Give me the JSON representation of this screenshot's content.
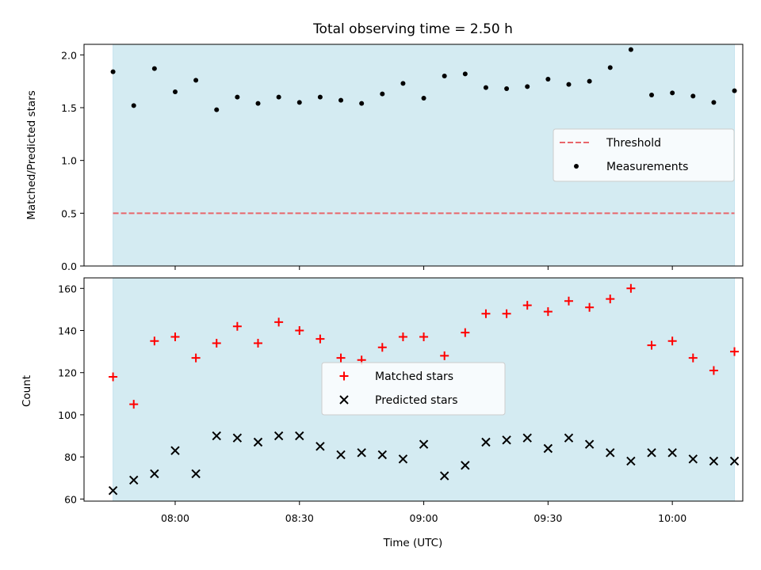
{
  "chart_data": [
    {
      "type": "scatter",
      "title": "Total observing time = 2.50 h",
      "xlabel": "",
      "ylabel": "Matched/Predicted stars",
      "xlim": [
        "07:38",
        "10:17"
      ],
      "ylim": [
        0,
        2.1
      ],
      "yticks": [
        "0.0",
        "0.5",
        "1.0",
        "1.5",
        "2.0"
      ],
      "xticks": [
        "08:00",
        "08:30",
        "09:00",
        "09:30",
        "10:00"
      ],
      "shaded_span": [
        "07:45",
        "10:15"
      ],
      "shaded_color": "#add8e6",
      "legend_position": "center-right",
      "series": [
        {
          "name": "Threshold",
          "kind": "hline",
          "y": 0.5,
          "color": "#e8666b",
          "style": "dashed"
        },
        {
          "name": "Measurements",
          "kind": "points",
          "marker": "dot",
          "color": "#000000",
          "x": [
            "07:45",
            "07:50",
            "07:55",
            "08:00",
            "08:05",
            "08:10",
            "08:15",
            "08:20",
            "08:25",
            "08:30",
            "08:35",
            "08:40",
            "08:45",
            "08:50",
            "08:55",
            "09:00",
            "09:05",
            "09:10",
            "09:15",
            "09:20",
            "09:25",
            "09:30",
            "09:35",
            "09:40",
            "09:45",
            "09:50",
            "09:55",
            "10:00",
            "10:05",
            "10:10",
            "10:15"
          ],
          "y": [
            1.84,
            1.52,
            1.87,
            1.65,
            1.76,
            1.48,
            1.6,
            1.54,
            1.6,
            1.55,
            1.6,
            1.57,
            1.54,
            1.63,
            1.73,
            1.59,
            1.8,
            1.82,
            1.69,
            1.68,
            1.7,
            1.77,
            1.72,
            1.75,
            1.88,
            2.05,
            1.62,
            1.64,
            1.61,
            1.55,
            1.66
          ]
        }
      ]
    },
    {
      "type": "scatter",
      "title": "",
      "xlabel": "Time (UTC)",
      "ylabel": "Count",
      "xlim": [
        "07:38",
        "10:17"
      ],
      "ylim": [
        59,
        165
      ],
      "yticks": [
        "60",
        "80",
        "100",
        "120",
        "140",
        "160"
      ],
      "xticks": [
        "08:00",
        "08:30",
        "09:00",
        "09:30",
        "10:00"
      ],
      "shaded_span": [
        "07:45",
        "10:15"
      ],
      "shaded_color": "#add8e6",
      "legend_position": "center",
      "series": [
        {
          "name": "Matched stars",
          "kind": "points",
          "marker": "plus",
          "color": "#ff0000",
          "x": [
            "07:45",
            "07:50",
            "07:55",
            "08:00",
            "08:05",
            "08:10",
            "08:15",
            "08:20",
            "08:25",
            "08:30",
            "08:35",
            "08:40",
            "08:45",
            "08:50",
            "08:55",
            "09:00",
            "09:05",
            "09:10",
            "09:15",
            "09:20",
            "09:25",
            "09:30",
            "09:35",
            "09:40",
            "09:45",
            "09:50",
            "09:55",
            "10:00",
            "10:05",
            "10:10",
            "10:15"
          ],
          "y": [
            118,
            105,
            135,
            137,
            127,
            134,
            142,
            134,
            144,
            140,
            136,
            127,
            126,
            132,
            137,
            137,
            128,
            139,
            148,
            148,
            152,
            149,
            154,
            151,
            155,
            160,
            133,
            135,
            127,
            121,
            130
          ]
        },
        {
          "name": "Predicted stars",
          "kind": "points",
          "marker": "cross",
          "color": "#000000",
          "x": [
            "07:45",
            "07:50",
            "07:55",
            "08:00",
            "08:05",
            "08:10",
            "08:15",
            "08:20",
            "08:25",
            "08:30",
            "08:35",
            "08:40",
            "08:45",
            "08:50",
            "08:55",
            "09:00",
            "09:05",
            "09:10",
            "09:15",
            "09:20",
            "09:25",
            "09:30",
            "09:35",
            "09:40",
            "09:45",
            "09:50",
            "09:55",
            "10:00",
            "10:05",
            "10:10",
            "10:15"
          ],
          "y": [
            64,
            69,
            72,
            83,
            72,
            90,
            89,
            87,
            90,
            90,
            85,
            81,
            82,
            81,
            79,
            86,
            71,
            76,
            87,
            88,
            89,
            84,
            89,
            86,
            82,
            78,
            82,
            82,
            79,
            78,
            78
          ]
        }
      ]
    }
  ]
}
